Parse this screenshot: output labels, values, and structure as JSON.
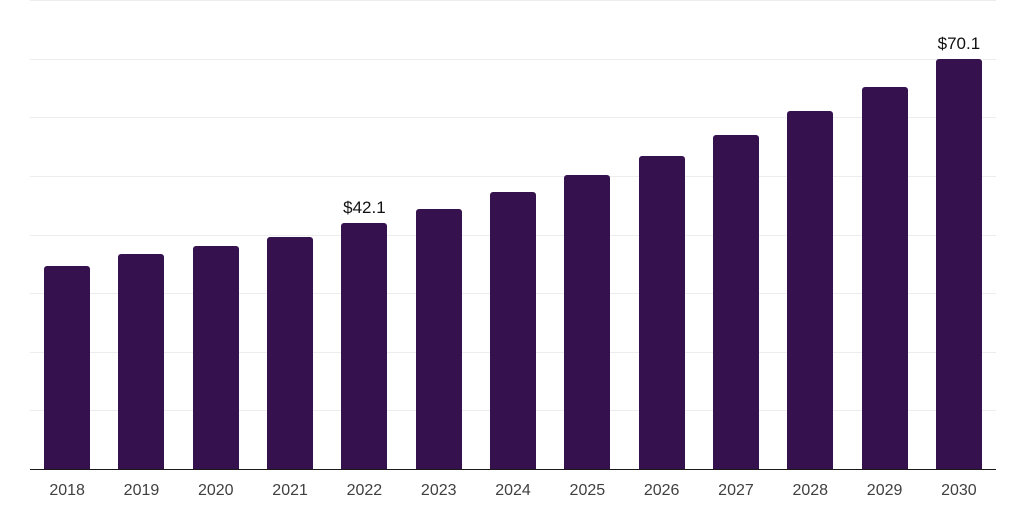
{
  "chart_data": {
    "type": "bar",
    "title": "",
    "xlabel": "",
    "ylabel": "",
    "categories": [
      "2018",
      "2019",
      "2020",
      "2021",
      "2022",
      "2023",
      "2024",
      "2025",
      "2026",
      "2027",
      "2028",
      "2029",
      "2030"
    ],
    "values": [
      34.8,
      36.8,
      38.2,
      39.7,
      42.1,
      44.5,
      47.4,
      50.4,
      53.6,
      57.2,
      61.2,
      65.4,
      70.1
    ],
    "data_labels": [
      {
        "category": "2022",
        "index": 4,
        "text": "$42.1"
      },
      {
        "category": "2030",
        "index": 12,
        "text": "$70.1"
      }
    ],
    "ylim": [
      0,
      80
    ],
    "gridline_step": 10,
    "grid": "horizontal",
    "legend": "none",
    "colors": {
      "bar": "#35114d",
      "gridline": "#ededed",
      "axis_line": "#1a1a1a",
      "tick_label": "#404040",
      "data_label": "#111111",
      "background": "#ffffff"
    }
  }
}
